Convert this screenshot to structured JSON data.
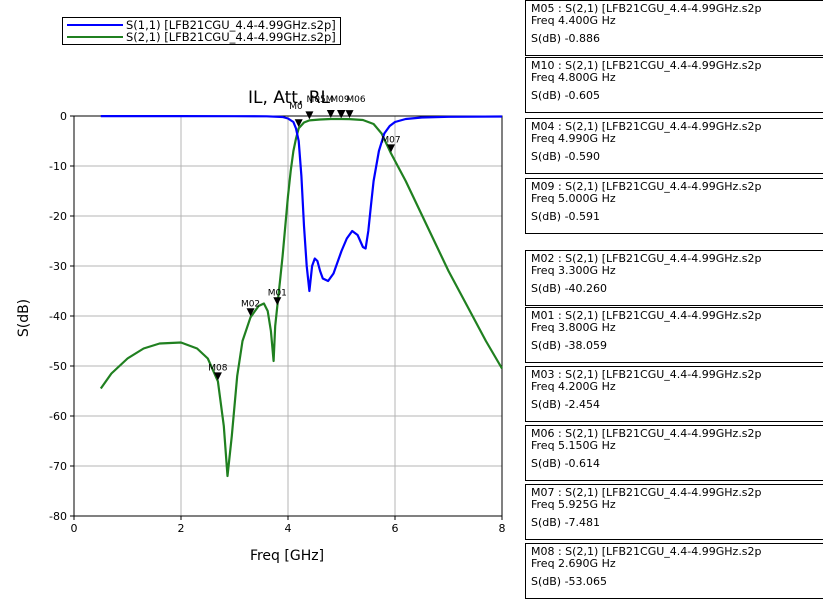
{
  "chart_data": {
    "type": "line",
    "title": "IL, Att, RL",
    "xlabel": "Freq [GHz]",
    "ylabel": "S(dB)",
    "xlim": [
      0,
      8
    ],
    "ylim": [
      -80,
      0
    ],
    "x_ticks": [
      "0",
      "2",
      "4",
      "6",
      "8"
    ],
    "y_ticks": [
      "0",
      "-10",
      "-20",
      "-30",
      "-40",
      "-50",
      "-60",
      "-70",
      "-80"
    ],
    "x_tick_values": [
      0,
      2,
      4,
      6,
      8
    ],
    "y_tick_values": [
      0,
      -10,
      -20,
      -30,
      -40,
      -50,
      -60,
      -70,
      -80
    ],
    "grid": true,
    "legend_position": "top-left, outside plot",
    "series": [
      {
        "name": "S(1,1) [LFB21CGU_4.4-4.99GHz.s2p]",
        "color": "#0000ff",
        "points": [
          [
            0.5,
            -0.02
          ],
          [
            1.0,
            -0.02
          ],
          [
            2.0,
            -0.02
          ],
          [
            3.0,
            -0.03
          ],
          [
            3.6,
            -0.05
          ],
          [
            3.9,
            -0.2
          ],
          [
            4.0,
            -0.5
          ],
          [
            4.1,
            -1.2
          ],
          [
            4.15,
            -2.5
          ],
          [
            4.2,
            -5
          ],
          [
            4.25,
            -12
          ],
          [
            4.3,
            -22
          ],
          [
            4.35,
            -30
          ],
          [
            4.4,
            -35
          ],
          [
            4.45,
            -30
          ],
          [
            4.5,
            -28.5
          ],
          [
            4.55,
            -29
          ],
          [
            4.6,
            -31
          ],
          [
            4.65,
            -32.5
          ],
          [
            4.75,
            -33
          ],
          [
            4.85,
            -31.5
          ],
          [
            5.0,
            -27
          ],
          [
            5.1,
            -24.5
          ],
          [
            5.2,
            -23
          ],
          [
            5.3,
            -23.8
          ],
          [
            5.4,
            -26.2
          ],
          [
            5.45,
            -26.5
          ],
          [
            5.5,
            -23
          ],
          [
            5.55,
            -18
          ],
          [
            5.6,
            -13
          ],
          [
            5.7,
            -7
          ],
          [
            5.8,
            -3.5
          ],
          [
            5.9,
            -2
          ],
          [
            6.0,
            -1.2
          ],
          [
            6.2,
            -0.6
          ],
          [
            6.5,
            -0.3
          ],
          [
            7.0,
            -0.15
          ],
          [
            8.0,
            -0.1
          ]
        ]
      },
      {
        "name": "S(2,1) [LFB21CGU_4.4-4.99GHz.s2p]",
        "color": "#208020",
        "points": [
          [
            0.5,
            -54.5
          ],
          [
            0.7,
            -51.5
          ],
          [
            1.0,
            -48.5
          ],
          [
            1.3,
            -46.5
          ],
          [
            1.6,
            -45.5
          ],
          [
            2.0,
            -45.3
          ],
          [
            2.3,
            -46.5
          ],
          [
            2.5,
            -48.5
          ],
          [
            2.69,
            -53.065
          ],
          [
            2.8,
            -62
          ],
          [
            2.87,
            -72
          ],
          [
            2.95,
            -64
          ],
          [
            3.05,
            -52
          ],
          [
            3.15,
            -45
          ],
          [
            3.3,
            -40.26
          ],
          [
            3.45,
            -38
          ],
          [
            3.55,
            -37.5
          ],
          [
            3.62,
            -39
          ],
          [
            3.68,
            -43
          ],
          [
            3.73,
            -49
          ],
          [
            3.76,
            -42
          ],
          [
            3.8,
            -38.059
          ],
          [
            3.85,
            -33
          ],
          [
            3.9,
            -28
          ],
          [
            3.95,
            -22
          ],
          [
            4.0,
            -16
          ],
          [
            4.05,
            -11
          ],
          [
            4.1,
            -7
          ],
          [
            4.15,
            -4.5
          ],
          [
            4.2,
            -2.454
          ],
          [
            4.3,
            -1.3
          ],
          [
            4.4,
            -0.886
          ],
          [
            4.6,
            -0.7
          ],
          [
            4.8,
            -0.605
          ],
          [
            4.99,
            -0.59
          ],
          [
            5.0,
            -0.591
          ],
          [
            5.15,
            -0.614
          ],
          [
            5.4,
            -0.8
          ],
          [
            5.6,
            -1.6
          ],
          [
            5.75,
            -3.5
          ],
          [
            5.925,
            -7.481
          ],
          [
            6.2,
            -13
          ],
          [
            6.6,
            -22
          ],
          [
            7.0,
            -31
          ],
          [
            7.4,
            -39
          ],
          [
            7.7,
            -45
          ],
          [
            8.0,
            -50.5
          ]
        ]
      }
    ],
    "markers": [
      {
        "id": "M05",
        "label": "M05",
        "x": 4.4,
        "y": -0.886
      },
      {
        "id": "M10",
        "label": "M10",
        "x": 4.8,
        "y": -0.605
      },
      {
        "id": "M04",
        "label": "M04",
        "x": 4.99,
        "y": -0.59
      },
      {
        "id": "M09",
        "label": "M09",
        "x": 5.0,
        "y": -0.591
      },
      {
        "id": "M02",
        "label": "M02",
        "x": 3.3,
        "y": -40.26
      },
      {
        "id": "M01",
        "label": "M01",
        "x": 3.8,
        "y": -38.059
      },
      {
        "id": "M03",
        "label": "M03",
        "x": 4.2,
        "y": -2.454
      },
      {
        "id": "M06",
        "label": "M06",
        "x": 5.15,
        "y": -0.614
      },
      {
        "id": "M07",
        "label": "M07",
        "x": 5.925,
        "y": -7.481
      },
      {
        "id": "M08",
        "label": "M08",
        "x": 2.69,
        "y": -53.065
      }
    ],
    "marker_overlap_labels": [
      {
        "text": "M05M",
        "near": "M05"
      },
      {
        "text": "M0",
        "near": "M03"
      },
      {
        "text": "M09",
        "near": "M04"
      },
      {
        "text": "M06",
        "near": "M06"
      }
    ]
  },
  "marker_table": [
    {
      "header": "M05 : S(2,1) [LFB21CGU_4.4-4.99GHz.s2p",
      "freq": "Freq   4.400G  Hz",
      "value": "S(dB)  -0.886"
    },
    {
      "header": "M10 : S(2,1) [LFB21CGU_4.4-4.99GHz.s2p",
      "freq": "Freq   4.800G  Hz",
      "value": "S(dB)  -0.605"
    },
    {
      "header": "M04 : S(2,1) [LFB21CGU_4.4-4.99GHz.s2p",
      "freq": "Freq   4.990G  Hz",
      "value": "S(dB)  -0.590"
    },
    {
      "header": "M09 : S(2,1) [LFB21CGU_4.4-4.99GHz.s2p",
      "freq": "Freq   5.000G  Hz",
      "value": "S(dB)  -0.591"
    },
    {
      "header": "M02 : S(2,1) [LFB21CGU_4.4-4.99GHz.s2p",
      "freq": "Freq   3.300G  Hz",
      "value": "S(dB)  -40.260"
    },
    {
      "header": "M01 : S(2,1) [LFB21CGU_4.4-4.99GHz.s2p",
      "freq": "Freq   3.800G  Hz",
      "value": "S(dB)  -38.059"
    },
    {
      "header": "M03 : S(2,1) [LFB21CGU_4.4-4.99GHz.s2p",
      "freq": "Freq   4.200G  Hz",
      "value": "S(dB)  -2.454"
    },
    {
      "header": "M06 : S(2,1) [LFB21CGU_4.4-4.99GHz.s2p",
      "freq": "Freq   5.150G  Hz",
      "value": "S(dB)  -0.614"
    },
    {
      "header": "M07 : S(2,1) [LFB21CGU_4.4-4.99GHz.s2p",
      "freq": "Freq   5.925G  Hz",
      "value": "S(dB)  -7.481"
    },
    {
      "header": "M08 : S(2,1) [LFB21CGU_4.4-4.99GHz.s2p",
      "freq": "Freq   2.690G  Hz",
      "value": "S(dB)  -53.065"
    }
  ]
}
